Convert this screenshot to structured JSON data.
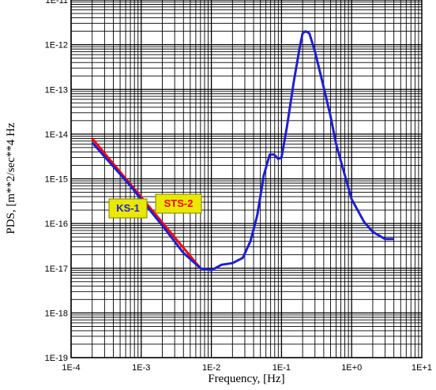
{
  "chart_data": {
    "type": "line",
    "title": "",
    "xlabel": "Frequency, [Hz]",
    "ylabel": "PDS, [m**2/sec**4  Hz",
    "x_scale": "log",
    "y_scale": "log",
    "xlim": [
      0.0001,
      10
    ],
    "ylim": [
      1e-19,
      1e-11
    ],
    "grid": true,
    "x_tick_labels": [
      "1E-4",
      "1E-3",
      "1E-2",
      "1E-1",
      "1E+0",
      "1E+1"
    ],
    "y_tick_labels": [
      "1E-11",
      "1E-12",
      "1E-13",
      "1E-14",
      "1E-15",
      "1E-16",
      "1E-17",
      "1E-18",
      "1E-19"
    ],
    "series": [
      {
        "name": "STS-2",
        "color": "#ff0000",
        "x": [
          0.0002,
          0.007
        ],
        "y": [
          8e-15,
          1e-17
        ]
      },
      {
        "name": "KS-1",
        "color": "#1f1fd0",
        "x": [
          0.0002,
          0.0007,
          0.002,
          0.004,
          0.007,
          0.01,
          0.014,
          0.02,
          0.028,
          0.036,
          0.045,
          0.056,
          0.068,
          0.078,
          0.09,
          0.1,
          0.12,
          0.15,
          0.18,
          0.2,
          0.22,
          0.25,
          0.3,
          0.4,
          0.5,
          0.6,
          0.8,
          1.0,
          1.5,
          2.0,
          3.0,
          4.0
        ],
        "y": [
          6.5e-15,
          7e-16,
          9e-17,
          2.2e-17,
          1e-17,
          9e-18,
          1.2e-17,
          1.3e-17,
          1.7e-17,
          4e-17,
          1.5e-16,
          1.2e-15,
          3.5e-15,
          3.5e-15,
          2.8e-15,
          3e-15,
          1.5e-14,
          1.5e-13,
          8e-13,
          1.8e-12,
          2e-12,
          1.8e-12,
          7e-13,
          1.1e-13,
          2.5e-14,
          6e-15,
          1.2e-15,
          3.5e-16,
          1.1e-16,
          6.5e-17,
          4.5e-17,
          4.5e-17
        ]
      }
    ],
    "legend": [
      {
        "label": "KS-1",
        "text_color": "#1f1fd0",
        "box_color": "#e8e800"
      },
      {
        "label": "STS-2",
        "text_color": "#ff0000",
        "box_color": "#e8e800"
      }
    ]
  }
}
